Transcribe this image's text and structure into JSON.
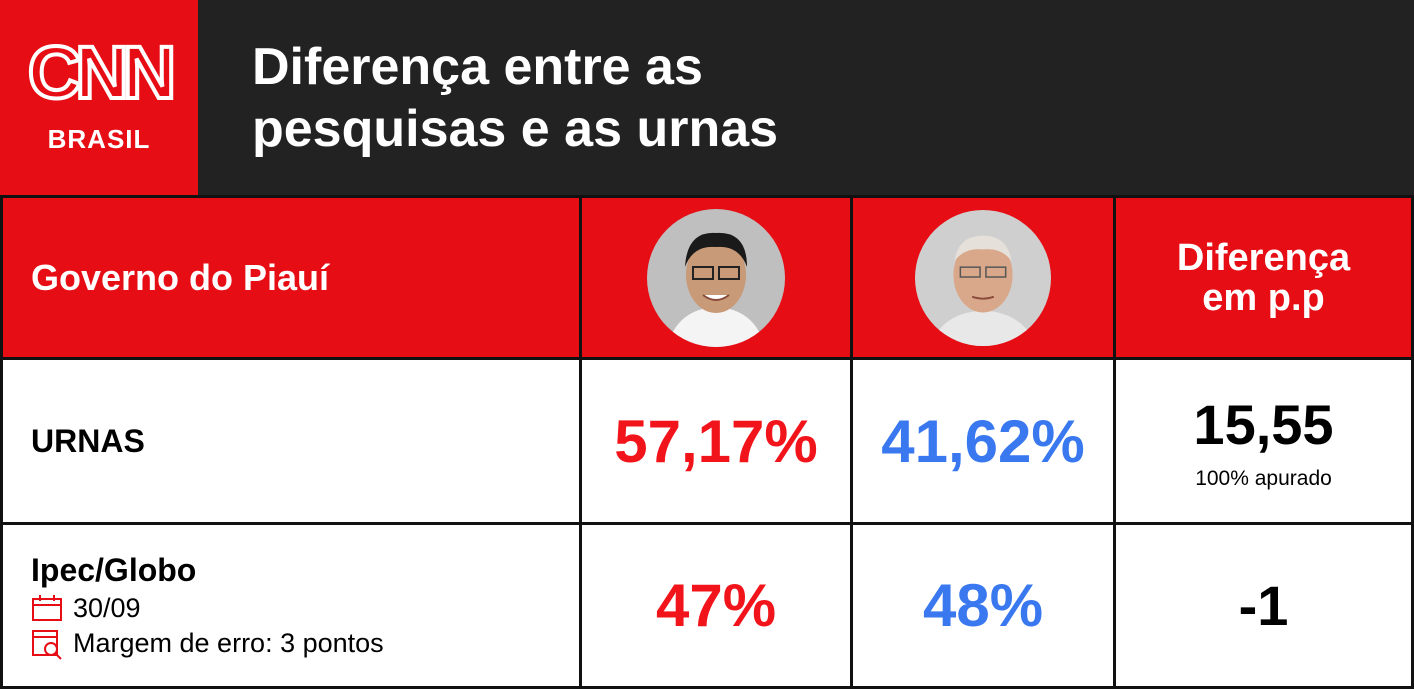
{
  "header": {
    "logo": {
      "top": "CNN",
      "bottom": "BRASIL"
    },
    "title": [
      "Diferença entre as",
      "pesquisas e as urnas"
    ]
  },
  "table": {
    "header": {
      "label": "Governo do Piauí",
      "difference": "Diferença em p.p"
    },
    "rows": [
      {
        "label": "URNAS",
        "candidate_1": "57,17%",
        "candidate_2": "41,62%",
        "difference": "15,55",
        "note": "100% apurado"
      },
      {
        "label": "Ipec/Globo",
        "date": "30/09",
        "margin": "Margem de erro: 3 pontos",
        "candidate_1": "47%",
        "candidate_2": "48%",
        "difference": "-1"
      }
    ]
  }
}
